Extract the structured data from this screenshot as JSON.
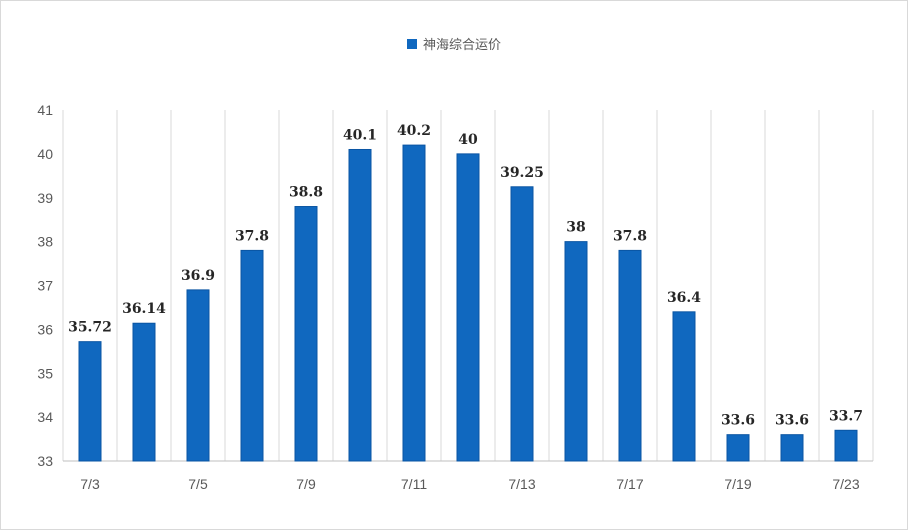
{
  "legend": {
    "label": "神海综合运价",
    "color": "#1068bf"
  },
  "chart_data": {
    "type": "bar",
    "categories": [
      "7/3",
      "",
      "7/5",
      "",
      "7/9",
      "",
      "7/11",
      "",
      "7/13",
      "",
      "7/17",
      "",
      "7/19",
      "",
      "7/23"
    ],
    "series": [
      {
        "name": "神海综合运价",
        "values": [
          35.72,
          36.14,
          36.9,
          37.8,
          38.8,
          40.1,
          40.2,
          40,
          39.25,
          38,
          37.8,
          36.4,
          33.6,
          33.6,
          33.7
        ]
      }
    ],
    "data_labels": [
      "35.72",
      "36.14",
      "36.9",
      "37.8",
      "38.8",
      "40.1",
      "40.2",
      "40",
      "39.25",
      "38",
      "37.8",
      "36.4",
      "33.6",
      "33.6",
      "33.7"
    ],
    "ylim": [
      33,
      41
    ],
    "yticks": [
      33,
      34,
      35,
      36,
      37,
      38,
      39,
      40,
      41
    ],
    "grid": "vertical",
    "legend_position": "top-center",
    "bar_color": "#1068bf"
  }
}
